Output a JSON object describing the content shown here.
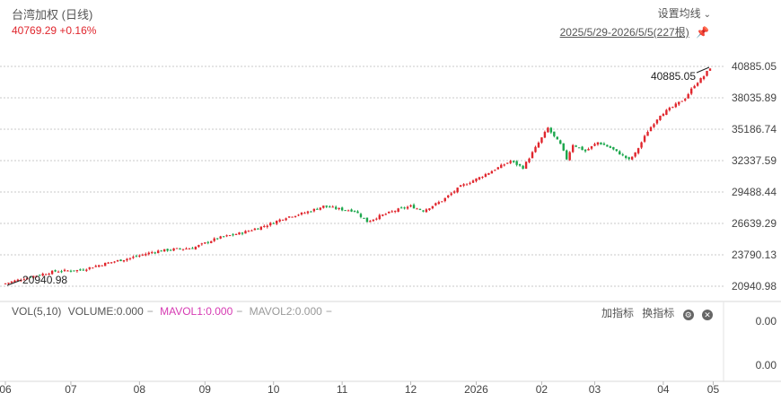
{
  "header": {
    "title": "台湾加权 (日线)",
    "price_line": "40769.29 +0.16%",
    "ma_settings": "设置均线",
    "range": "2025/5/29-2026/5/5(227根)"
  },
  "volume_panel": {
    "vol": "VOL(5,10)",
    "volume": "VOLUME:0.000",
    "mavol1": "MAVOL1:0.000",
    "mavol2": "MAVOL2:0.000",
    "add_indicator": "加指标",
    "switch_indicator": "换指标",
    "y_labels": [
      "0.00",
      "0.00"
    ]
  },
  "colors": {
    "up": "#e0262d",
    "down": "#1aa64b",
    "mavol1": "#d63bb3"
  },
  "chart_data": {
    "type": "candlestick",
    "title": "台湾加权 (日线)",
    "y_ticks": [
      "40885.05",
      "38035.89",
      "35186.74",
      "32337.59",
      "29488.44",
      "26639.29",
      "23790.13",
      "20940.98"
    ],
    "ylim": [
      20940.98,
      40885.05
    ],
    "x_ticks": [
      "06",
      "07",
      "08",
      "09",
      "10",
      "11",
      "12",
      "2026",
      "02",
      "03",
      "04",
      "05"
    ],
    "annotations": {
      "max": "40885.05",
      "min": "20940.98"
    },
    "close_path": [
      {
        "bar": 0,
        "value": 21200
      },
      {
        "bar": 8,
        "value": 21800
      },
      {
        "bar": 16,
        "value": 22300
      },
      {
        "bar": 24,
        "value": 22400
      },
      {
        "bar": 32,
        "value": 23000
      },
      {
        "bar": 40,
        "value": 23500
      },
      {
        "bar": 48,
        "value": 24100
      },
      {
        "bar": 54,
        "value": 24300
      },
      {
        "bar": 60,
        "value": 24400
      },
      {
        "bar": 68,
        "value": 25300
      },
      {
        "bar": 76,
        "value": 25800
      },
      {
        "bar": 84,
        "value": 26500
      },
      {
        "bar": 90,
        "value": 27200
      },
      {
        "bar": 96,
        "value": 27600
      },
      {
        "bar": 102,
        "value": 28200
      },
      {
        "bar": 108,
        "value": 27900
      },
      {
        "bar": 112,
        "value": 27800
      },
      {
        "bar": 116,
        "value": 26800
      },
      {
        "bar": 120,
        "value": 27300
      },
      {
        "bar": 126,
        "value": 27900
      },
      {
        "bar": 130,
        "value": 28200
      },
      {
        "bar": 134,
        "value": 27800
      },
      {
        "bar": 140,
        "value": 28700
      },
      {
        "bar": 146,
        "value": 30000
      },
      {
        "bar": 152,
        "value": 30800
      },
      {
        "bar": 158,
        "value": 31700
      },
      {
        "bar": 162,
        "value": 32300
      },
      {
        "bar": 166,
        "value": 31700
      },
      {
        "bar": 170,
        "value": 33500
      },
      {
        "bar": 174,
        "value": 35300
      },
      {
        "bar": 176,
        "value": 34500
      },
      {
        "bar": 178,
        "value": 33800
      },
      {
        "bar": 180,
        "value": 32500
      },
      {
        "bar": 182,
        "value": 33800
      },
      {
        "bar": 186,
        "value": 33200
      },
      {
        "bar": 190,
        "value": 34000
      },
      {
        "bar": 194,
        "value": 33500
      },
      {
        "bar": 198,
        "value": 32800
      },
      {
        "bar": 200,
        "value": 32400
      },
      {
        "bar": 202,
        "value": 33000
      },
      {
        "bar": 206,
        "value": 35000
      },
      {
        "bar": 210,
        "value": 36500
      },
      {
        "bar": 214,
        "value": 37200
      },
      {
        "bar": 218,
        "value": 38000
      },
      {
        "bar": 221,
        "value": 39200
      },
      {
        "bar": 224,
        "value": 40000
      },
      {
        "bar": 226,
        "value": 40769
      }
    ]
  }
}
